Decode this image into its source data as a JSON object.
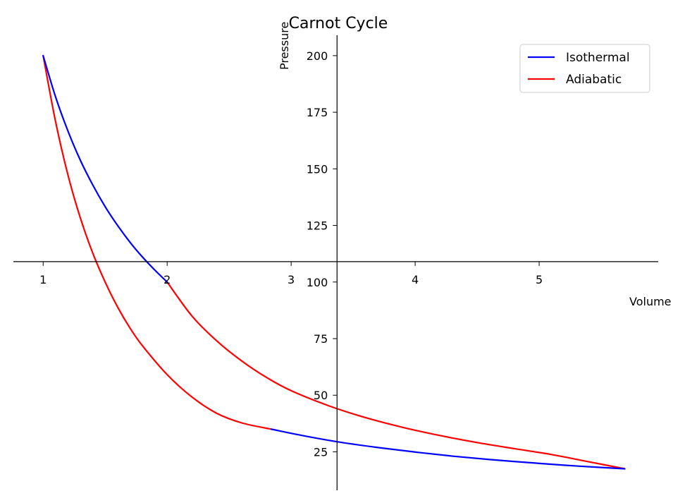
{
  "chart_data": {
    "type": "line",
    "title": "Carnot Cycle",
    "xlabel": "Volume",
    "ylabel": "Pressure",
    "xlim": [
      0.76,
      5.96
    ],
    "ylim": [
      8,
      209
    ],
    "xticks": [
      1,
      2,
      3,
      4,
      5
    ],
    "yticks": [
      25,
      50,
      75,
      100,
      125,
      150,
      175,
      200
    ],
    "axes_cross": {
      "x": 3.37,
      "y": 109
    },
    "grid": false,
    "legend": {
      "placement": "top-right",
      "entries": [
        "Isothermal",
        "Adiabatic"
      ]
    },
    "colors": {
      "Isothermal": "#0000ff",
      "Adiabatic": "#ff0000"
    },
    "series": [
      {
        "name": "Isothermal",
        "segments": [
          {
            "x": [
              1.0,
              1.1,
              1.2,
              1.3,
              1.4,
              1.5,
              1.6,
              1.7,
              1.8,
              1.9,
              2.0
            ],
            "y": [
              200.0,
              181.8,
              166.7,
              153.8,
              142.9,
              133.3,
              125.0,
              117.6,
              111.1,
              105.3,
              100.0
            ]
          },
          {
            "x": [
              2.84,
              3.1,
              3.4,
              3.7,
              4.0,
              4.3,
              4.6,
              4.9,
              5.2,
              5.5,
              5.69
            ],
            "y": [
              35.0,
              32.1,
              29.2,
              26.9,
              24.9,
              23.1,
              21.6,
              20.3,
              19.1,
              18.1,
              17.5
            ]
          }
        ]
      },
      {
        "name": "Adiabatic",
        "segments": [
          {
            "x": [
              1.0,
              1.1,
              1.2,
              1.3,
              1.4,
              1.5,
              1.6,
              1.7,
              1.8,
              2.0,
              2.2,
              2.4,
              2.6,
              2.84
            ],
            "y": [
              200.0,
              170.9,
              147.3,
              128.3,
              112.8,
              100.0,
              89.0,
              79.7,
              71.9,
              59.1,
              49.2,
              42.0,
              37.8,
              35.0
            ]
          },
          {
            "x": [
              2.0,
              2.2,
              2.4,
              2.6,
              2.8,
              3.0,
              3.3,
              3.6,
              3.9,
              4.2,
              4.5,
              4.8,
              5.1,
              5.4,
              5.69
            ],
            "y": [
              100.0,
              85.0,
              74.0,
              65.2,
              57.9,
              52.0,
              45.4,
              40.1,
              35.8,
              32.2,
              29.1,
              26.4,
              23.8,
              20.6,
              17.5
            ]
          }
        ]
      }
    ]
  }
}
